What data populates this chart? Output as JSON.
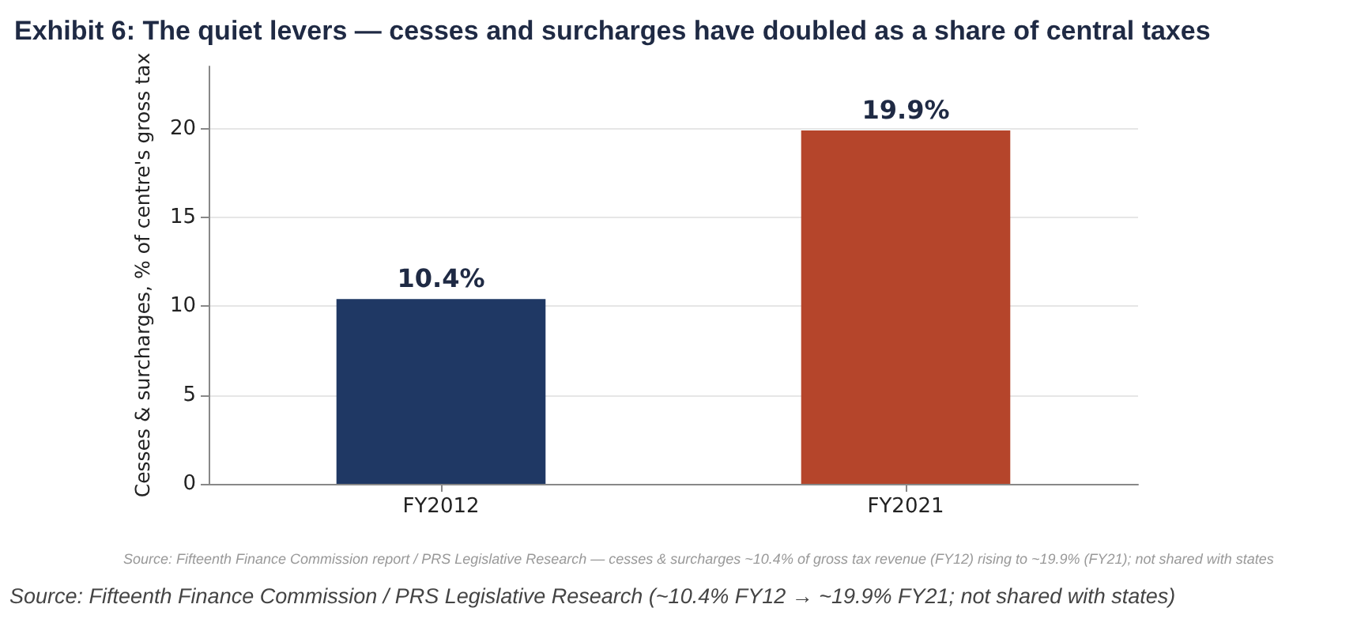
{
  "chart_data": {
    "type": "bar",
    "title": "Exhibit 6: The quiet levers — cesses and surcharges have doubled as a share of central taxes",
    "ylabel": "Cesses & surcharges, % of centre's gross tax",
    "categories": [
      "FY2012",
      "FY2021"
    ],
    "series": [
      {
        "color": "#1f3864",
        "values": [
          10.4,
          null
        ],
        "value_labels": [
          "10.4%",
          null
        ]
      },
      {
        "color": "#b5452b",
        "values": [
          null,
          19.9
        ],
        "value_labels": [
          null,
          "19.9%"
        ]
      }
    ],
    "stacked": true,
    "ylim": [
      0,
      23.5
    ],
    "yticks": [
      0,
      5,
      10,
      15,
      20
    ],
    "grid": "y",
    "annotations": [
      "Source: Fifteenth Finance Commission report / PRS Legislative Research — cesses & surcharges ~10.4% of gross tax revenue (FY12) rising to ~19.9% (FY21); not shared with states",
      "Source: Fifteenth Finance Commission / PRS Legislative Research (~10.4% FY12 → ~19.9% FY21; not shared with states)"
    ]
  }
}
